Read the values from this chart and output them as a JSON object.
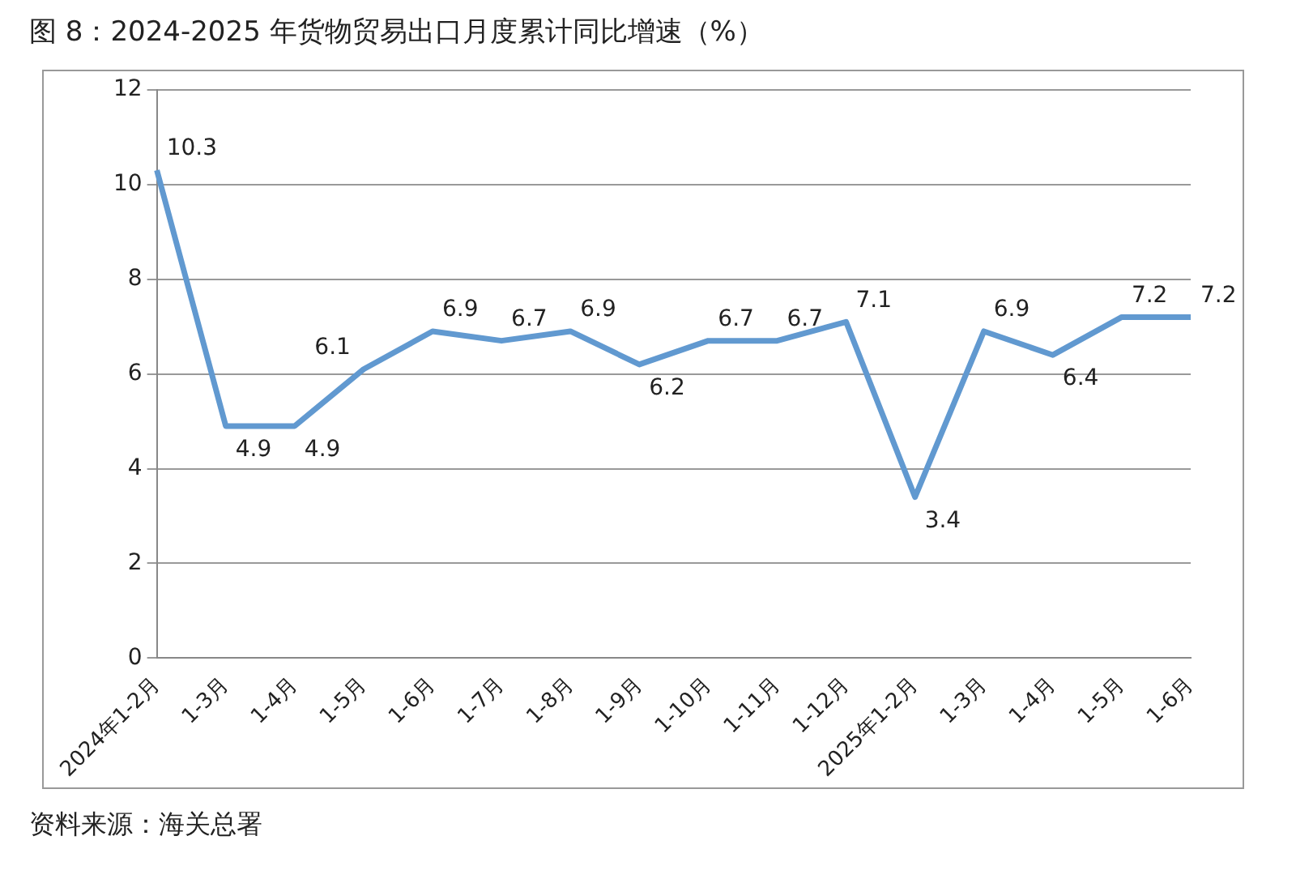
{
  "chart_data": {
    "type": "line",
    "title": "图 8：2024-2025 年货物贸易出口月度累计同比增速（%）",
    "categories": [
      "2024年1-2月",
      "1-3月",
      "1-4月",
      "1-5月",
      "1-6月",
      "1-7月",
      "1-8月",
      "1-9月",
      "1-10月",
      "1-11月",
      "1-12月",
      "2025年1-2月",
      "1-3月",
      "1-4月",
      "1-5月",
      "1-6月"
    ],
    "series": [
      {
        "color": "#6199d0",
        "values": [
          10.3,
          4.9,
          4.9,
          6.1,
          6.9,
          6.7,
          6.9,
          6.2,
          6.7,
          6.7,
          7.1,
          3.4,
          6.9,
          6.4,
          7.2,
          7.2
        ]
      }
    ],
    "ylim": [
      0,
      12
    ],
    "yticks": [
      0,
      2,
      4,
      6,
      8,
      10,
      12
    ],
    "grid": "y",
    "data_labels": true,
    "marker": "none",
    "line_style": "solid",
    "annotations": [
      "资料来源：海关总署"
    ]
  }
}
